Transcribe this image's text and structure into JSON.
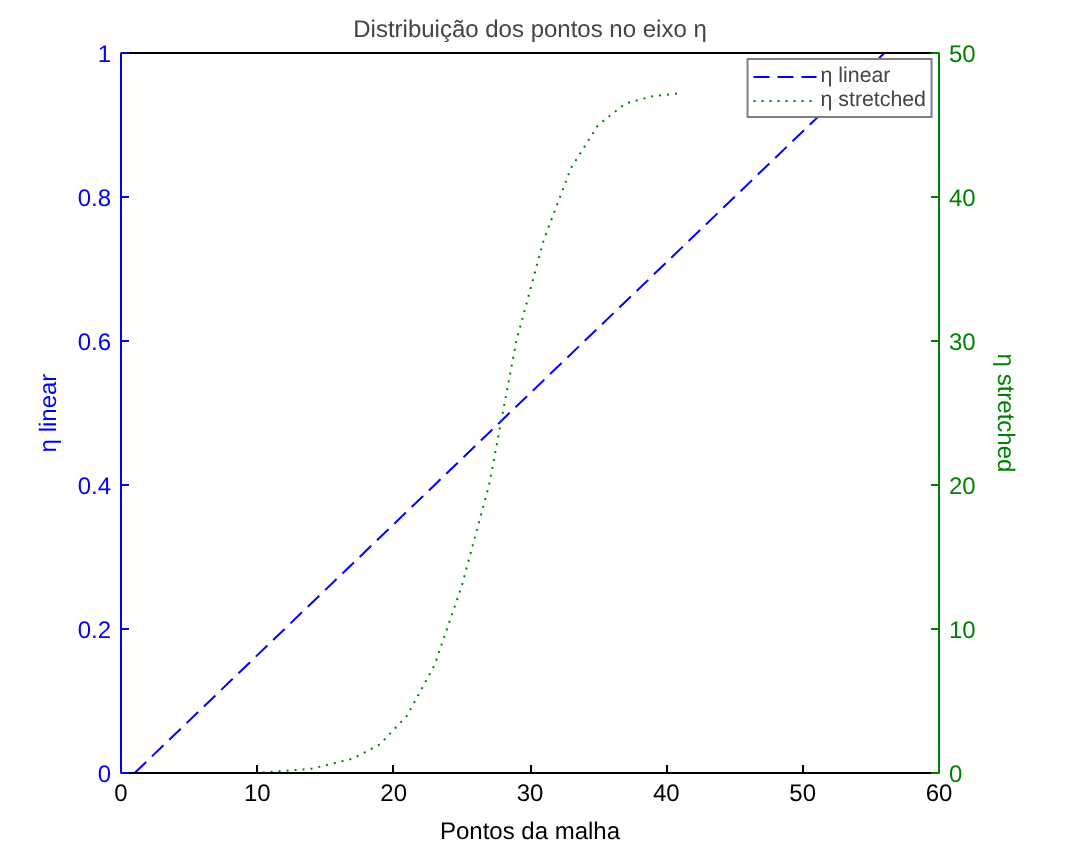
{
  "chart_data": {
    "type": "line",
    "title": "Distribuição dos pontos no eixo η",
    "xlabel": "Pontos da malha",
    "ylabel": "η linear",
    "y2label": "η stretched",
    "xlim": [
      0,
      60
    ],
    "xticks": [
      0,
      10,
      20,
      30,
      40,
      50,
      60
    ],
    "ylim": [
      0,
      1
    ],
    "yticks": [
      0,
      0.2,
      0.4,
      0.6,
      0.8,
      1
    ],
    "y2lim": [
      0,
      50
    ],
    "y2ticks": [
      0,
      10,
      20,
      30,
      40,
      50
    ],
    "grid": false,
    "legend": "top right",
    "marker": "none",
    "series": [
      {
        "name": "η linear",
        "color": "#0000ff",
        "line_style": "dashed",
        "x": [
          1,
          56
        ],
        "values": [
          0,
          1
        ]
      },
      {
        "name": "η stretched",
        "color": "#008000",
        "line_style": "dotted",
        "axis": "y2",
        "x": [
          1,
          10,
          14,
          17,
          19,
          21,
          23,
          25,
          27,
          28,
          29,
          31,
          33,
          35,
          37,
          39,
          41
        ],
        "values": [
          0,
          0,
          0.3,
          1,
          2,
          4,
          7.5,
          13,
          20,
          25,
          30,
          37,
          42,
          45,
          46.5,
          47,
          47.2
        ]
      }
    ]
  }
}
